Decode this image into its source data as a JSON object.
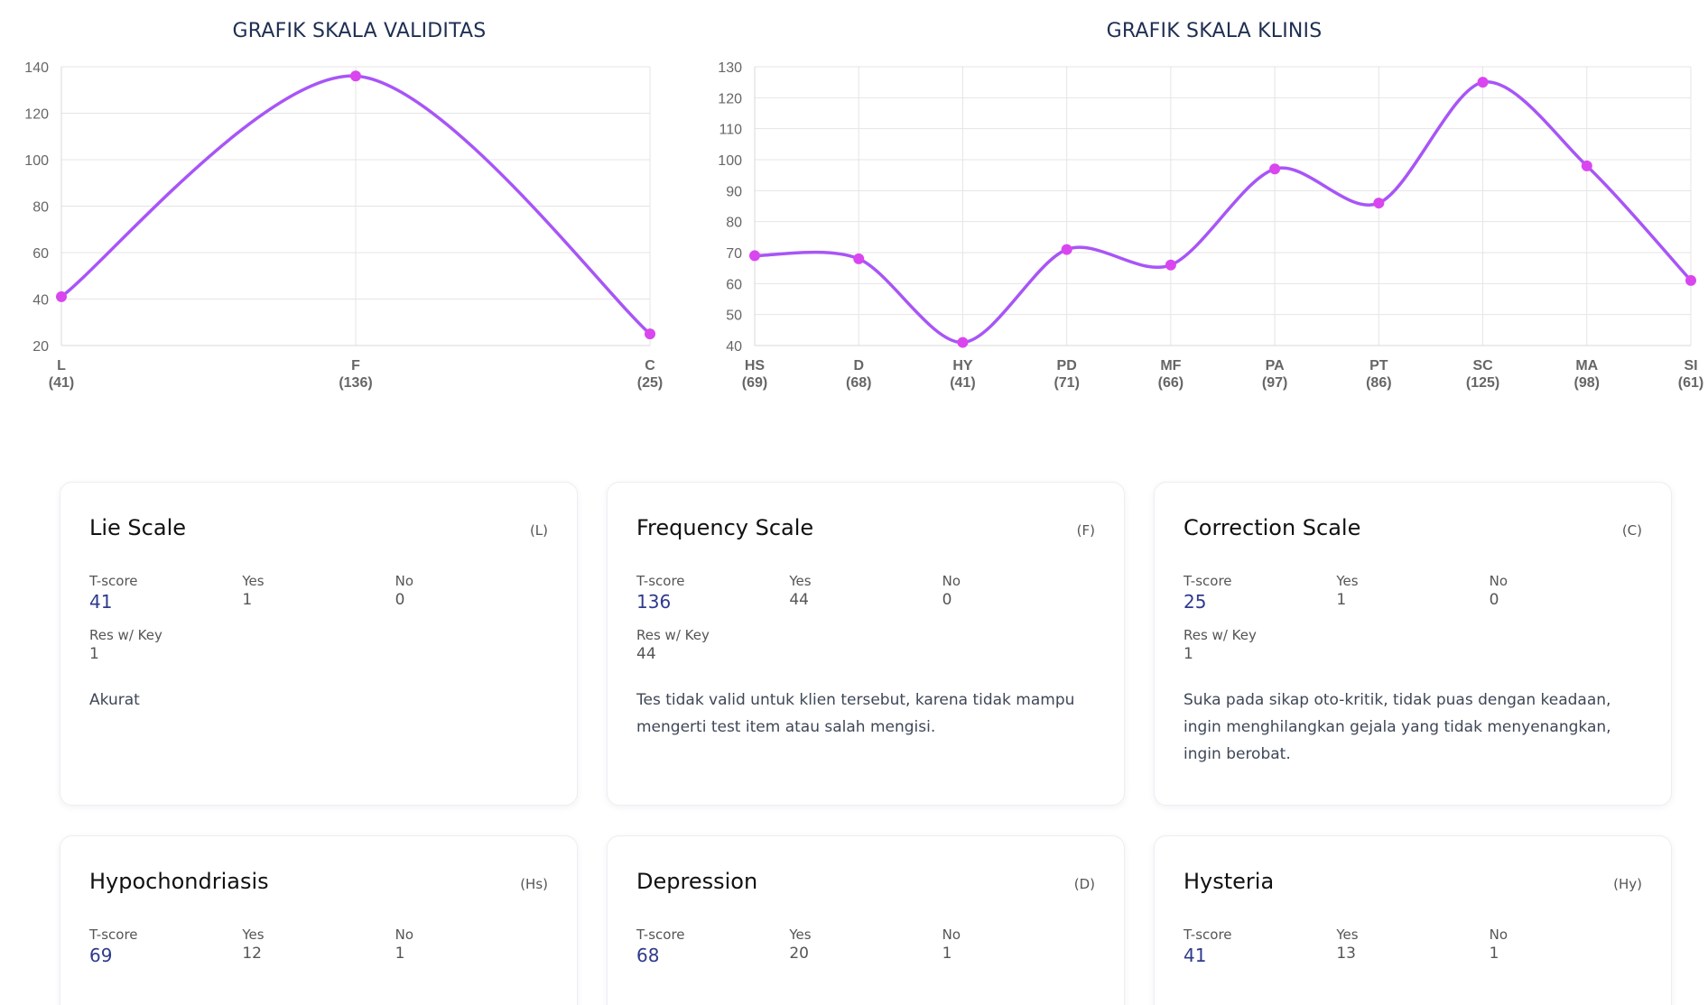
{
  "chart_data": [
    {
      "type": "line",
      "title": "GRAFIK SKALA VALIDITAS",
      "categories": [
        "L",
        "F",
        "C"
      ],
      "category_values": [
        "(41)",
        "(136)",
        "(25)"
      ],
      "values": [
        41,
        136,
        25
      ],
      "ylim": [
        20,
        140
      ],
      "yticks": [
        20,
        40,
        60,
        80,
        100,
        120,
        140
      ],
      "grid": true,
      "line_color": "#a855f7",
      "point_color": "#d946ef"
    },
    {
      "type": "line",
      "title": "GRAFIK SKALA KLINIS",
      "categories": [
        "HS",
        "D",
        "HY",
        "PD",
        "MF",
        "PA",
        "PT",
        "SC",
        "MA",
        "SI"
      ],
      "category_values": [
        "(69)",
        "(68)",
        "(41)",
        "(71)",
        "(66)",
        "(97)",
        "(86)",
        "(125)",
        "(98)",
        "(61)"
      ],
      "values": [
        69,
        68,
        41,
        71,
        66,
        97,
        86,
        125,
        98,
        61
      ],
      "ylim": [
        40,
        130
      ],
      "yticks": [
        40,
        50,
        60,
        70,
        80,
        90,
        100,
        110,
        120,
        130
      ],
      "grid": true,
      "line_color": "#a855f7",
      "point_color": "#d946ef"
    }
  ],
  "labels": {
    "tscore": "T-score",
    "yes": "Yes",
    "no": "No",
    "reskey": "Res w/ Key"
  },
  "cards": [
    {
      "title": "Lie Scale",
      "code": "(L)",
      "tscore": "41",
      "yes": "1",
      "no": "0",
      "reskey": "1",
      "desc": "Akurat"
    },
    {
      "title": "Frequency Scale",
      "code": "(F)",
      "tscore": "136",
      "yes": "44",
      "no": "0",
      "reskey": "44",
      "desc": "Tes tidak valid untuk klien tersebut, karena tidak mampu mengerti test item atau salah mengisi."
    },
    {
      "title": "Correction Scale",
      "code": "(C)",
      "tscore": "25",
      "yes": "1",
      "no": "0",
      "reskey": "1",
      "desc": "Suka pada sikap oto-kritik, tidak puas dengan keadaan, ingin menghilangkan gejala yang tidak menyenangkan, ingin berobat."
    },
    {
      "title": "Hypochondriasis",
      "code": "(Hs)",
      "tscore": "69",
      "yes": "12",
      "no": "1"
    },
    {
      "title": "Depression",
      "code": "(D)",
      "tscore": "68",
      "yes": "20",
      "no": "1"
    },
    {
      "title": "Hysteria",
      "code": "(Hy)",
      "tscore": "41",
      "yes": "13",
      "no": "1"
    }
  ]
}
